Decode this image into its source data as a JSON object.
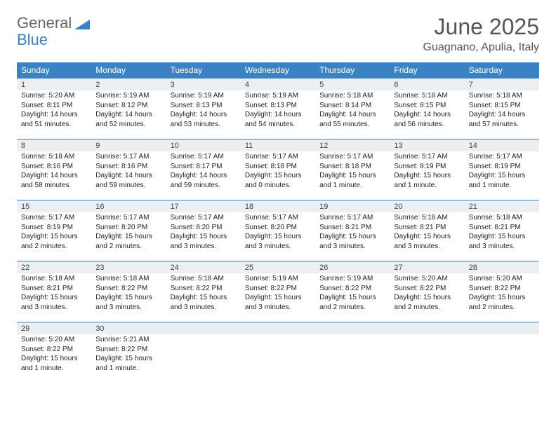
{
  "brand": {
    "part1": "General",
    "part2": "Blue"
  },
  "title": "June 2025",
  "location": "Guagnano, Apulia, Italy",
  "colors": {
    "header_bg": "#3b82c4",
    "daynum_bg": "#eceff1",
    "border": "#3b82c4",
    "text": "#222222"
  },
  "weekdays": [
    "Sunday",
    "Monday",
    "Tuesday",
    "Wednesday",
    "Thursday",
    "Friday",
    "Saturday"
  ],
  "days": [
    {
      "n": 1,
      "sr": "5:20 AM",
      "ss": "8:11 PM",
      "dl": "14 hours and 51 minutes."
    },
    {
      "n": 2,
      "sr": "5:19 AM",
      "ss": "8:12 PM",
      "dl": "14 hours and 52 minutes."
    },
    {
      "n": 3,
      "sr": "5:19 AM",
      "ss": "8:13 PM",
      "dl": "14 hours and 53 minutes."
    },
    {
      "n": 4,
      "sr": "5:19 AM",
      "ss": "8:13 PM",
      "dl": "14 hours and 54 minutes."
    },
    {
      "n": 5,
      "sr": "5:18 AM",
      "ss": "8:14 PM",
      "dl": "14 hours and 55 minutes."
    },
    {
      "n": 6,
      "sr": "5:18 AM",
      "ss": "8:15 PM",
      "dl": "14 hours and 56 minutes."
    },
    {
      "n": 7,
      "sr": "5:18 AM",
      "ss": "8:15 PM",
      "dl": "14 hours and 57 minutes."
    },
    {
      "n": 8,
      "sr": "5:18 AM",
      "ss": "8:16 PM",
      "dl": "14 hours and 58 minutes."
    },
    {
      "n": 9,
      "sr": "5:17 AM",
      "ss": "8:16 PM",
      "dl": "14 hours and 59 minutes."
    },
    {
      "n": 10,
      "sr": "5:17 AM",
      "ss": "8:17 PM",
      "dl": "14 hours and 59 minutes."
    },
    {
      "n": 11,
      "sr": "5:17 AM",
      "ss": "8:18 PM",
      "dl": "15 hours and 0 minutes."
    },
    {
      "n": 12,
      "sr": "5:17 AM",
      "ss": "8:18 PM",
      "dl": "15 hours and 1 minute."
    },
    {
      "n": 13,
      "sr": "5:17 AM",
      "ss": "8:19 PM",
      "dl": "15 hours and 1 minute."
    },
    {
      "n": 14,
      "sr": "5:17 AM",
      "ss": "8:19 PM",
      "dl": "15 hours and 1 minute."
    },
    {
      "n": 15,
      "sr": "5:17 AM",
      "ss": "8:19 PM",
      "dl": "15 hours and 2 minutes."
    },
    {
      "n": 16,
      "sr": "5:17 AM",
      "ss": "8:20 PM",
      "dl": "15 hours and 2 minutes."
    },
    {
      "n": 17,
      "sr": "5:17 AM",
      "ss": "8:20 PM",
      "dl": "15 hours and 3 minutes."
    },
    {
      "n": 18,
      "sr": "5:17 AM",
      "ss": "8:20 PM",
      "dl": "15 hours and 3 minutes."
    },
    {
      "n": 19,
      "sr": "5:17 AM",
      "ss": "8:21 PM",
      "dl": "15 hours and 3 minutes."
    },
    {
      "n": 20,
      "sr": "5:18 AM",
      "ss": "8:21 PM",
      "dl": "15 hours and 3 minutes."
    },
    {
      "n": 21,
      "sr": "5:18 AM",
      "ss": "8:21 PM",
      "dl": "15 hours and 3 minutes."
    },
    {
      "n": 22,
      "sr": "5:18 AM",
      "ss": "8:21 PM",
      "dl": "15 hours and 3 minutes."
    },
    {
      "n": 23,
      "sr": "5:18 AM",
      "ss": "8:22 PM",
      "dl": "15 hours and 3 minutes."
    },
    {
      "n": 24,
      "sr": "5:18 AM",
      "ss": "8:22 PM",
      "dl": "15 hours and 3 minutes."
    },
    {
      "n": 25,
      "sr": "5:19 AM",
      "ss": "8:22 PM",
      "dl": "15 hours and 3 minutes."
    },
    {
      "n": 26,
      "sr": "5:19 AM",
      "ss": "8:22 PM",
      "dl": "15 hours and 2 minutes."
    },
    {
      "n": 27,
      "sr": "5:20 AM",
      "ss": "8:22 PM",
      "dl": "15 hours and 2 minutes."
    },
    {
      "n": 28,
      "sr": "5:20 AM",
      "ss": "8:22 PM",
      "dl": "15 hours and 2 minutes."
    },
    {
      "n": 29,
      "sr": "5:20 AM",
      "ss": "8:22 PM",
      "dl": "15 hours and 1 minute."
    },
    {
      "n": 30,
      "sr": "5:21 AM",
      "ss": "8:22 PM",
      "dl": "15 hours and 1 minute."
    }
  ],
  "labels": {
    "sunrise": "Sunrise: ",
    "sunset": "Sunset: ",
    "daylight": "Daylight: "
  }
}
